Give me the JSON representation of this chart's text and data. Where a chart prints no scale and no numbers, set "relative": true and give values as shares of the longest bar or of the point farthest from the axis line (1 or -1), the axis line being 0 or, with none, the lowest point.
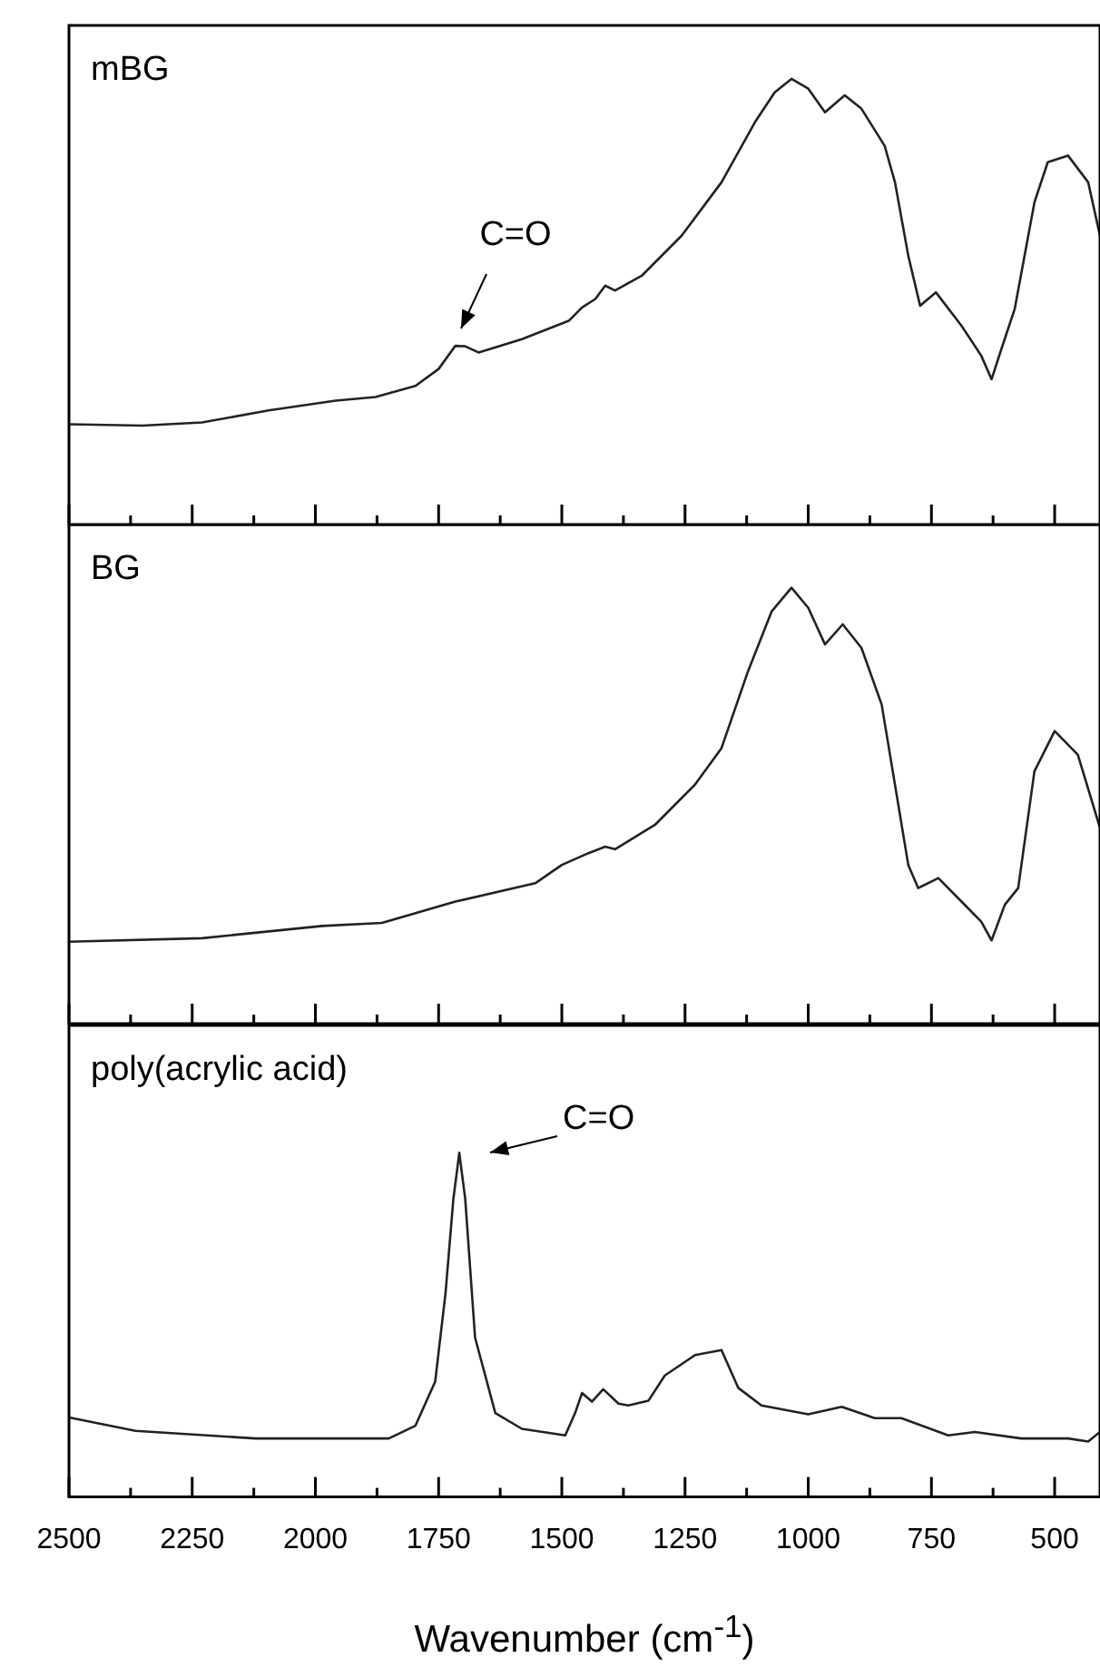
{
  "chart_data": [
    {
      "type": "line",
      "title": "mBG",
      "relative": true,
      "xlim": [
        2500,
        408
      ],
      "tick_labels": false,
      "legend": false,
      "grid": false,
      "marker": "none",
      "line_style": "solid",
      "xticks": [
        {
          "value": 2500,
          "label": null
        },
        {
          "value": 2375,
          "label": null
        },
        {
          "value": 2250,
          "label": null
        },
        {
          "value": 2125,
          "label": null
        },
        {
          "value": 2000,
          "label": null
        },
        {
          "value": 1875,
          "label": null
        },
        {
          "value": 1750,
          "label": null
        },
        {
          "value": 1625,
          "label": null
        },
        {
          "value": 1500,
          "label": null
        },
        {
          "value": 1375,
          "label": null
        },
        {
          "value": 1250,
          "label": null
        },
        {
          "value": 1125,
          "label": null
        },
        {
          "value": 1000,
          "label": null
        },
        {
          "value": 875,
          "label": null
        },
        {
          "value": 750,
          "label": null
        },
        {
          "value": 625,
          "label": null
        },
        {
          "value": 500,
          "label": null
        }
      ],
      "x": [
        2500,
        2351,
        2230,
        2095,
        1959,
        1878,
        1797,
        1750,
        1716,
        1696,
        1669,
        1581,
        1486,
        1459,
        1432,
        1412,
        1392,
        1338,
        1257,
        1176,
        1108,
        1068,
        1034,
        1000,
        966,
        926,
        892,
        845,
        824,
        797,
        773,
        741,
        689,
        649,
        628,
        608,
        581,
        541,
        514,
        473,
        432,
        408
      ],
      "series": [
        {
          "color": "#222222",
          "values": [
            0.225,
            0.222,
            0.229,
            0.256,
            0.278,
            0.286,
            0.311,
            0.349,
            0.401,
            0.4,
            0.386,
            0.416,
            0.457,
            0.487,
            0.506,
            0.536,
            0.525,
            0.558,
            0.648,
            0.768,
            0.903,
            0.97,
            1.0,
            0.978,
            0.925,
            0.963,
            0.933,
            0.85,
            0.768,
            0.603,
            0.491,
            0.521,
            0.446,
            0.379,
            0.326,
            0.394,
            0.484,
            0.723,
            0.813,
            0.828,
            0.768,
            0.648
          ]
        }
      ],
      "annotations": [
        "C=O"
      ]
    },
    {
      "type": "line",
      "title": "BG",
      "relative": true,
      "xlim": [
        2500,
        408
      ],
      "tick_labels": false,
      "legend": false,
      "grid": false,
      "marker": "none",
      "line_style": "solid",
      "xticks": [
        {
          "value": 2500,
          "label": null
        },
        {
          "value": 2375,
          "label": null
        },
        {
          "value": 2250,
          "label": null
        },
        {
          "value": 2125,
          "label": null
        },
        {
          "value": 2000,
          "label": null
        },
        {
          "value": 1875,
          "label": null
        },
        {
          "value": 1750,
          "label": null
        },
        {
          "value": 1625,
          "label": null
        },
        {
          "value": 1500,
          "label": null
        },
        {
          "value": 1375,
          "label": null
        },
        {
          "value": 1250,
          "label": null
        },
        {
          "value": 1125,
          "label": null
        },
        {
          "value": 1000,
          "label": null
        },
        {
          "value": 875,
          "label": null
        },
        {
          "value": 750,
          "label": null
        },
        {
          "value": 625,
          "label": null
        },
        {
          "value": 500,
          "label": null
        }
      ],
      "x": [
        2500,
        2230,
        1986,
        1865,
        1716,
        1554,
        1500,
        1446,
        1412,
        1392,
        1311,
        1230,
        1176,
        1122,
        1074,
        1034,
        1000,
        966,
        930,
        892,
        851,
        824,
        797,
        777,
        736,
        689,
        649,
        628,
        601,
        574,
        541,
        500,
        453,
        408
      ],
      "series": [
        {
          "color": "#222222",
          "values": [
            0.188,
            0.196,
            0.224,
            0.231,
            0.28,
            0.322,
            0.364,
            0.391,
            0.406,
            0.4,
            0.456,
            0.548,
            0.632,
            0.809,
            0.946,
            1.0,
            0.954,
            0.87,
            0.916,
            0.862,
            0.732,
            0.548,
            0.364,
            0.311,
            0.334,
            0.28,
            0.234,
            0.191,
            0.273,
            0.311,
            0.579,
            0.671,
            0.617,
            0.449
          ]
        }
      ]
    },
    {
      "type": "line",
      "title": "poly(acrylic acid)",
      "relative": true,
      "xlim": [
        2500,
        408
      ],
      "legend": false,
      "grid": false,
      "marker": "none",
      "line_style": "solid",
      "xlabel": "Wavenumber (cm$^{-1}$)",
      "xticks": [
        {
          "value": 2500,
          "label": "2500"
        },
        {
          "value": 2375,
          "label": null
        },
        {
          "value": 2250,
          "label": "2250"
        },
        {
          "value": 2125,
          "label": null
        },
        {
          "value": 2000,
          "label": "2000"
        },
        {
          "value": 1875,
          "label": null
        },
        {
          "value": 1750,
          "label": "1750"
        },
        {
          "value": 1625,
          "label": null
        },
        {
          "value": 1500,
          "label": "1500"
        },
        {
          "value": 1375,
          "label": null
        },
        {
          "value": 1250,
          "label": "1250"
        },
        {
          "value": 1125,
          "label": null
        },
        {
          "value": 1000,
          "label": "1000"
        },
        {
          "value": 875,
          "label": null
        },
        {
          "value": 750,
          "label": "750"
        },
        {
          "value": 625,
          "label": null
        },
        {
          "value": 500,
          "label": "500"
        }
      ],
      "x": [
        2500,
        2365,
        2122,
        1851,
        1797,
        1757,
        1736,
        1720,
        1708,
        1696,
        1676,
        1635,
        1581,
        1493,
        1473,
        1459,
        1439,
        1416,
        1385,
        1365,
        1324,
        1291,
        1230,
        1176,
        1142,
        1095,
        1000,
        932,
        865,
        811,
        716,
        662,
        568,
        473,
        432,
        408
      ],
      "series": [
        {
          "color": "#222222",
          "values": [
            0.231,
            0.192,
            0.17,
            0.17,
            0.207,
            0.335,
            0.592,
            0.866,
            1.0,
            0.866,
            0.463,
            0.244,
            0.198,
            0.179,
            0.244,
            0.302,
            0.277,
            0.313,
            0.271,
            0.266,
            0.28,
            0.353,
            0.412,
            0.427,
            0.317,
            0.266,
            0.24,
            0.262,
            0.229,
            0.229,
            0.179,
            0.189,
            0.17,
            0.17,
            0.161,
            0.189
          ]
        }
      ],
      "annotations": [
        "C=O"
      ]
    }
  ]
}
